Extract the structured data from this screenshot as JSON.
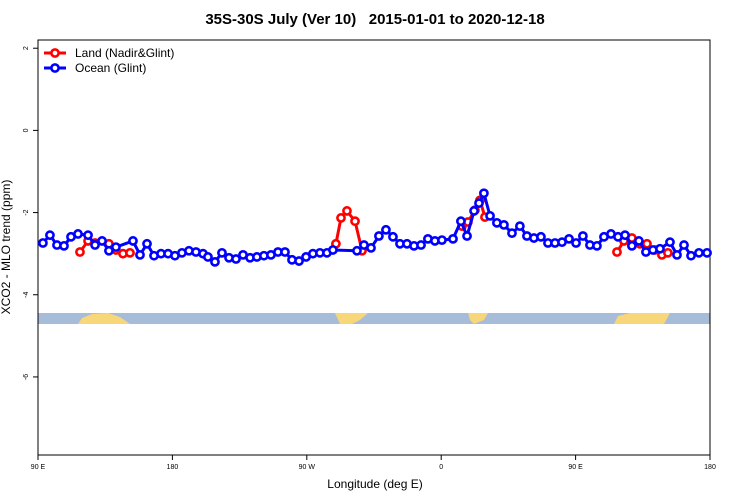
{
  "chart_data": {
    "type": "line",
    "title": "35S-30S July (Ver 10)   2015-01-01 to 2020-12-18",
    "xlabel": "Longitude (deg E)",
    "ylabel": "XCO2 - MLO trend (ppm)",
    "xlim": [
      90,
      540
    ],
    "xticks": [
      {
        "value": 90,
        "label": "90 E"
      },
      180,
      {
        "value": 270,
        "label": "90 W"
      },
      {
        "value": 360,
        "label": "0"
      },
      {
        "value": 450,
        "label": "90 E"
      },
      {
        "value": 540,
        "label": "180"
      }
    ],
    "ylim": [
      -7.9,
      2.2
    ],
    "yticks": [
      2,
      0,
      -2,
      -4,
      -6
    ],
    "legend": "top-left",
    "series": [
      {
        "name": "Land (Nadir&Glint)",
        "color": "#ff0000",
        "x": [
          118.1,
          123.5,
          128.2,
          137.5,
          142.2,
          146.9,
          151.6,
          null,
          289.5,
          292.9,
          296.9,
          302.3,
          307.0,
          null,
          373.9,
          377.9,
          382.6,
          386.0,
          389.3,
          null,
          477.7,
          482.4,
          487.7,
          493.1,
          497.8,
          503.1,
          507.8,
          511.8
        ],
        "values": [
          -2.96,
          -2.69,
          -2.74,
          -2.76,
          -2.91,
          -3.0,
          -2.98,
          null,
          -2.76,
          -2.13,
          -1.96,
          -2.21,
          -2.93,
          null,
          -2.33,
          -2.23,
          -1.94,
          -1.7,
          -2.11,
          null,
          -2.96,
          -2.69,
          -2.62,
          -2.76,
          -2.76,
          -2.91,
          -3.03,
          -2.98
        ]
      },
      {
        "name": "Ocean (Glint)",
        "color": "#0000ff",
        "x": [
          93.3,
          98.0,
          102.7,
          107.4,
          112.1,
          116.8,
          123.5,
          128.2,
          132.9,
          137.5,
          142.2,
          153.6,
          158.3,
          163.0,
          167.7,
          172.4,
          177.1,
          181.7,
          186.4,
          191.1,
          195.8,
          200.5,
          203.8,
          208.5,
          213.2,
          217.9,
          222.6,
          227.3,
          232.0,
          236.6,
          241.3,
          246.0,
          250.7,
          255.4,
          260.1,
          264.8,
          269.5,
          274.1,
          278.8,
          283.5,
          287.5,
          303.6,
          308.3,
          313.0,
          318.3,
          323.0,
          327.7,
          332.4,
          337.1,
          341.8,
          346.5,
          351.1,
          355.8,
          360.5,
          367.9,
          373.2,
          377.3,
          382.0,
          385.3,
          388.6,
          392.7,
          397.3,
          402.0,
          407.4,
          412.7,
          417.4,
          422.1,
          426.8,
          431.5,
          436.2,
          440.9,
          445.6,
          450.3,
          454.9,
          459.6,
          464.3,
          469.0,
          473.7,
          478.4,
          483.1,
          487.7,
          492.4,
          497.1,
          501.8,
          506.5,
          513.2,
          517.9,
          522.6,
          527.3,
          532.6,
          538.0
        ],
        "values": [
          -2.74,
          -2.55,
          -2.79,
          -2.81,
          -2.59,
          -2.52,
          -2.55,
          -2.79,
          -2.69,
          -2.93,
          -2.84,
          -2.69,
          -3.03,
          -2.76,
          -3.05,
          -3.0,
          -3.0,
          -3.05,
          -2.98,
          -2.93,
          -2.96,
          -3.0,
          -3.08,
          -3.2,
          -2.98,
          -3.1,
          -3.13,
          -3.03,
          -3.1,
          -3.08,
          -3.05,
          -3.03,
          -2.96,
          -2.96,
          -3.15,
          -3.18,
          -3.08,
          -3.0,
          -2.98,
          -2.98,
          -2.91,
          -2.93,
          -2.79,
          -2.86,
          -2.57,
          -2.42,
          -2.59,
          -2.76,
          -2.76,
          -2.81,
          -2.79,
          -2.64,
          -2.69,
          -2.67,
          -2.64,
          -2.21,
          -2.57,
          -1.96,
          -1.77,
          -1.53,
          -2.08,
          -2.25,
          -2.3,
          -2.5,
          -2.33,
          -2.57,
          -2.62,
          -2.59,
          -2.74,
          -2.74,
          -2.72,
          -2.64,
          -2.74,
          -2.57,
          -2.79,
          -2.81,
          -2.59,
          -2.52,
          -2.59,
          -2.55,
          -2.81,
          -2.69,
          -2.96,
          -2.91,
          -2.88,
          -2.72,
          -3.03,
          -2.79,
          -3.05,
          -2.98,
          -2.98
        ]
      }
    ]
  }
}
